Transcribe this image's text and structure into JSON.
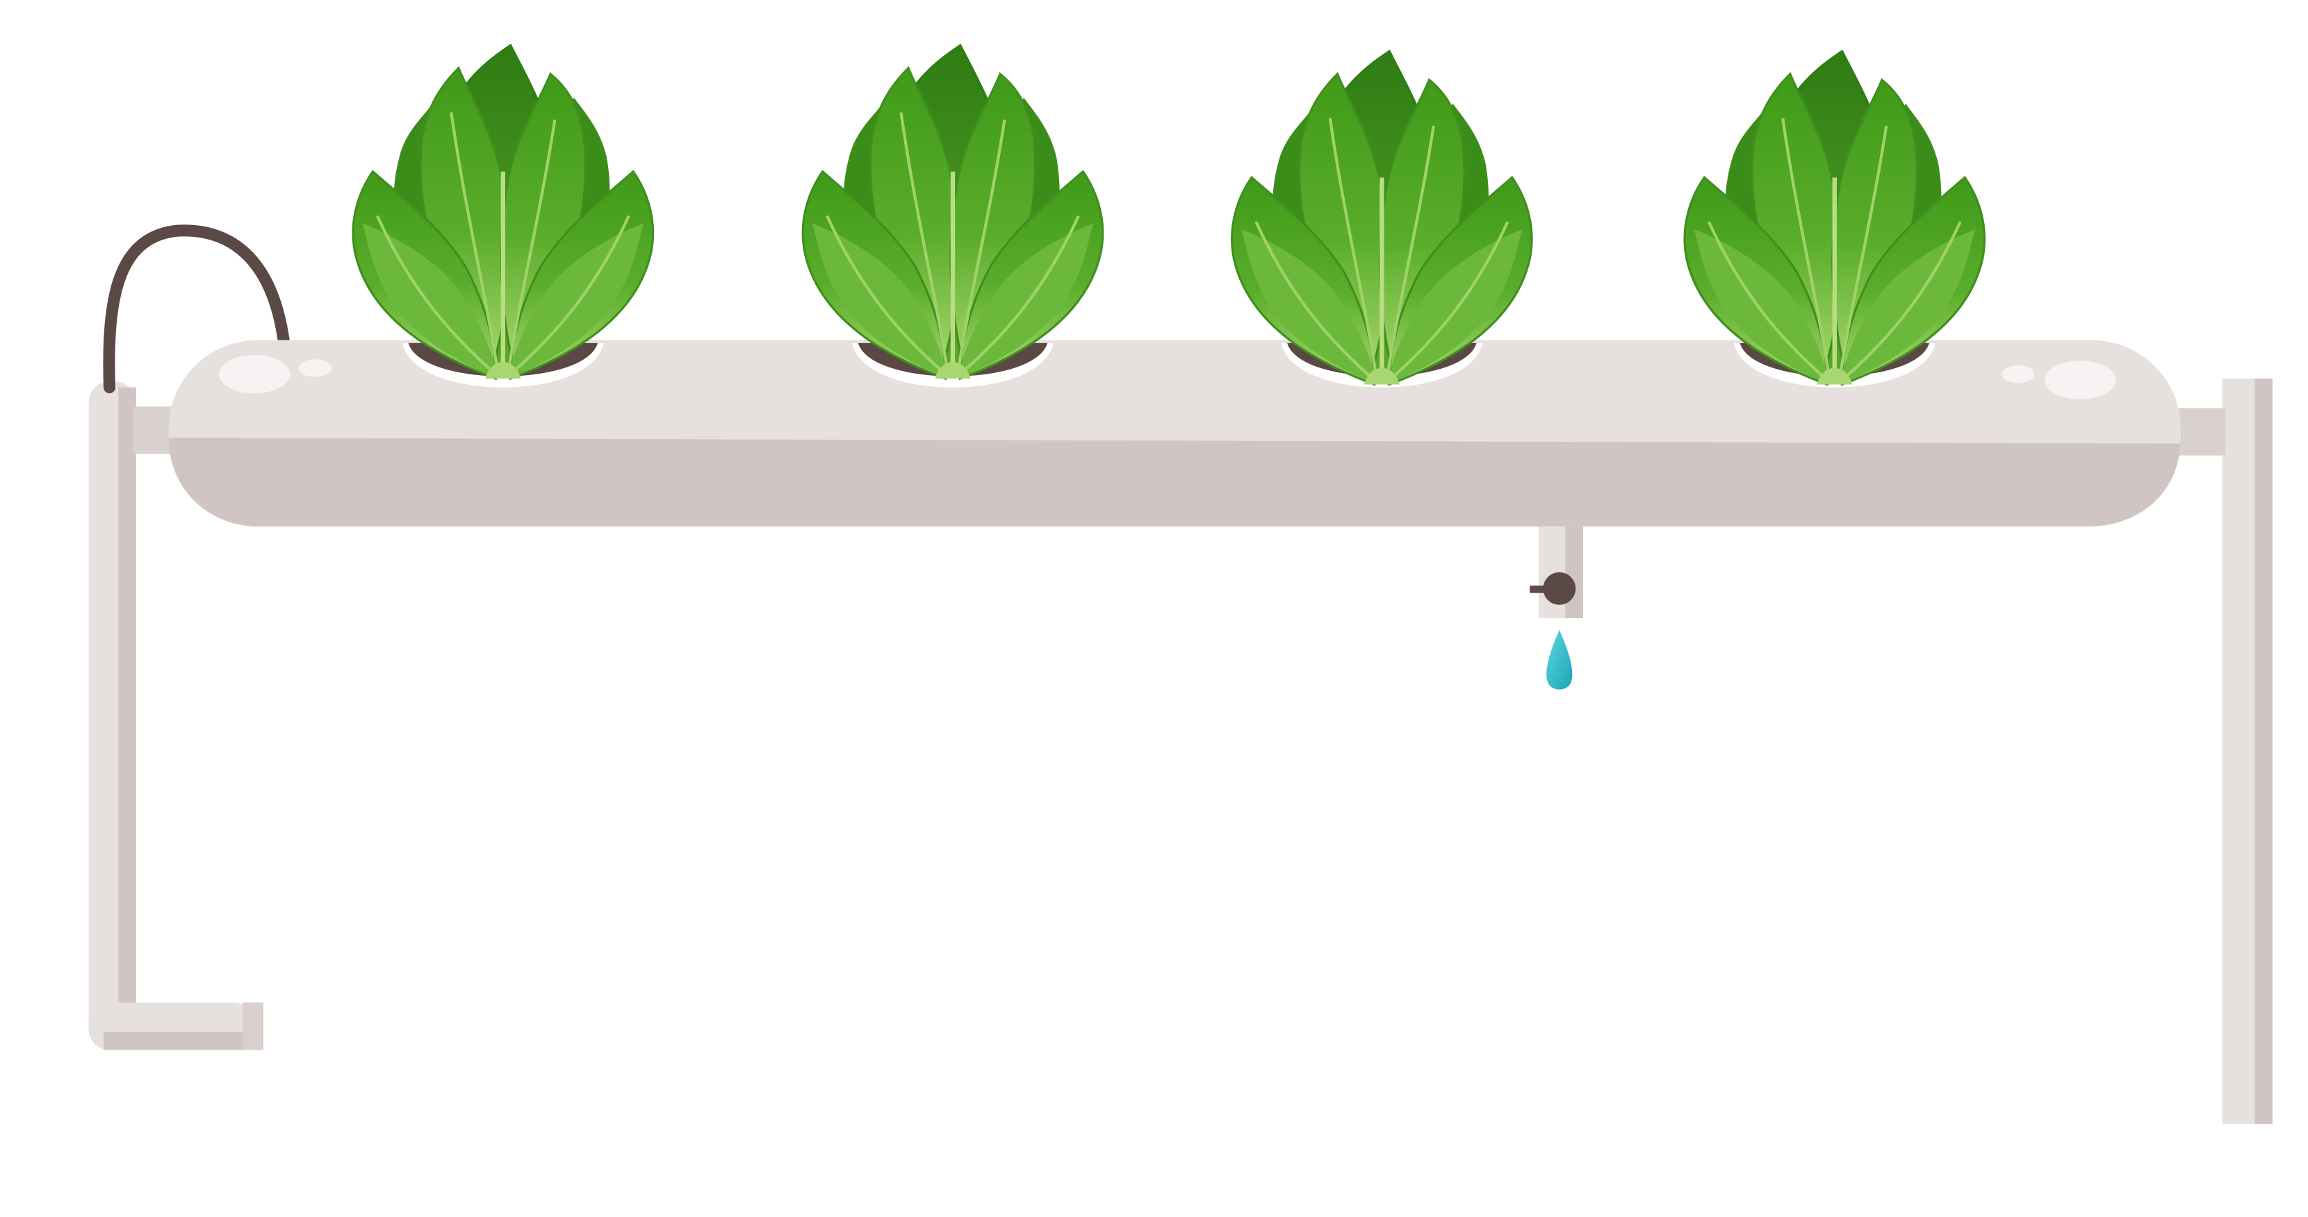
{
  "scene": {
    "subject": "hydroponic-pipe-with-lettuce",
    "plant_count": 4,
    "colors": {
      "background": "#ffffff",
      "pipe_light": "#e6e1df",
      "pipe_shadow": "#d0c5c2",
      "pipe_highlight": "#f6f3f2",
      "soil": "#5b4743",
      "cup": "#ffffff",
      "hose": "#5a4945",
      "leaf_dark": "#3f8f1f",
      "leaf_mid": "#57a92a",
      "leaf_light": "#7fc04a",
      "leaf_pale": "#a8d670",
      "vein": "#9fd26a",
      "water_drop": "#2bb8c6",
      "valve": "#5a4945"
    },
    "icons": [
      "lettuce-plant-icon",
      "water-drop-icon",
      "valve-icon",
      "hose-icon"
    ]
  }
}
